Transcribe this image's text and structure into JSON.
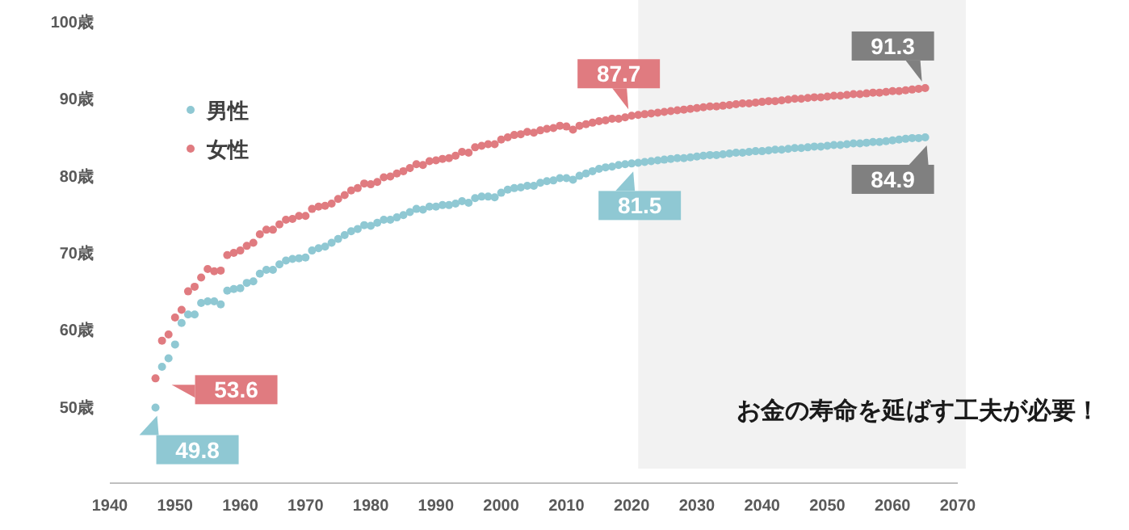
{
  "chart_data": {
    "type": "scatter",
    "marker": "circle",
    "legend": "top left",
    "grid": false,
    "x": [
      1947,
      1948,
      1949,
      1950,
      1951,
      1952,
      1953,
      1954,
      1955,
      1956,
      1957,
      1958,
      1959,
      1960,
      1961,
      1962,
      1963,
      1964,
      1965,
      1966,
      1967,
      1968,
      1969,
      1970,
      1971,
      1972,
      1973,
      1974,
      1975,
      1976,
      1977,
      1978,
      1979,
      1980,
      1981,
      1982,
      1983,
      1984,
      1985,
      1986,
      1987,
      1988,
      1989,
      1990,
      1991,
      1992,
      1993,
      1994,
      1995,
      1996,
      1997,
      1998,
      1999,
      2000,
      2001,
      2002,
      2003,
      2004,
      2005,
      2006,
      2007,
      2008,
      2009,
      2010,
      2011,
      2012,
      2013,
      2014,
      2015,
      2016,
      2017,
      2018,
      2019,
      2020,
      2021,
      2022,
      2023,
      2024,
      2025,
      2026,
      2027,
      2028,
      2029,
      2030,
      2031,
      2032,
      2033,
      2034,
      2035,
      2036,
      2037,
      2038,
      2039,
      2040,
      2041,
      2042,
      2043,
      2044,
      2045,
      2046,
      2047,
      2048,
      2049,
      2050,
      2051,
      2052,
      2053,
      2054,
      2055,
      2056,
      2057,
      2058,
      2059,
      2060,
      2061,
      2062,
      2063,
      2064,
      2065
    ],
    "series": [
      {
        "name": "男性",
        "color": "#8fc8d3",
        "values": [
          49.8,
          55.1,
          56.2,
          58.0,
          60.8,
          61.9,
          61.9,
          63.4,
          63.6,
          63.6,
          63.2,
          65.0,
          65.2,
          65.3,
          66.0,
          66.2,
          67.2,
          67.7,
          67.7,
          68.4,
          68.9,
          69.1,
          69.2,
          69.3,
          70.2,
          70.5,
          70.7,
          71.2,
          71.7,
          72.2,
          72.7,
          73.0,
          73.5,
          73.4,
          73.8,
          74.2,
          74.2,
          74.5,
          74.8,
          75.2,
          75.6,
          75.5,
          75.9,
          75.9,
          76.1,
          76.1,
          76.3,
          76.6,
          76.4,
          77.0,
          77.2,
          77.2,
          77.1,
          77.7,
          78.1,
          78.3,
          78.4,
          78.6,
          78.6,
          79.0,
          79.2,
          79.3,
          79.6,
          79.6,
          79.4,
          79.9,
          80.2,
          80.5,
          80.8,
          81.0,
          81.1,
          81.3,
          81.4,
          81.5,
          81.6,
          81.7,
          81.8,
          81.9,
          82.0,
          82.1,
          82.2,
          82.2,
          82.3,
          82.4,
          82.5,
          82.6,
          82.6,
          82.7,
          82.8,
          82.9,
          82.9,
          83.0,
          83.1,
          83.1,
          83.2,
          83.3,
          83.3,
          83.4,
          83.5,
          83.5,
          83.6,
          83.7,
          83.7,
          83.8,
          83.9,
          83.9,
          84.0,
          84.1,
          84.1,
          84.2,
          84.3,
          84.3,
          84.4,
          84.5,
          84.6,
          84.7,
          84.8,
          84.8,
          84.9
        ]
      },
      {
        "name": "女性",
        "color": "#e07b80",
        "values": [
          53.6,
          58.5,
          59.3,
          61.5,
          62.5,
          64.9,
          65.5,
          66.7,
          67.8,
          67.5,
          67.6,
          69.6,
          69.9,
          70.2,
          70.8,
          71.2,
          72.3,
          72.9,
          72.9,
          73.6,
          74.2,
          74.3,
          74.7,
          74.7,
          75.6,
          75.9,
          76.0,
          76.3,
          76.9,
          77.4,
          78.0,
          78.3,
          78.9,
          78.8,
          79.1,
          79.7,
          79.8,
          80.2,
          80.5,
          80.9,
          81.4,
          81.3,
          81.8,
          81.9,
          82.1,
          82.2,
          82.5,
          83.0,
          82.9,
          83.6,
          83.8,
          84.0,
          84.0,
          84.6,
          84.9,
          85.2,
          85.3,
          85.6,
          85.5,
          85.8,
          86.0,
          86.1,
          86.4,
          86.3,
          85.9,
          86.4,
          86.6,
          86.8,
          87.0,
          87.1,
          87.3,
          87.3,
          87.5,
          87.7,
          87.8,
          87.9,
          88.0,
          88.1,
          88.2,
          88.3,
          88.4,
          88.5,
          88.6,
          88.7,
          88.8,
          88.9,
          88.9,
          89.0,
          89.1,
          89.2,
          89.3,
          89.3,
          89.4,
          89.5,
          89.6,
          89.6,
          89.7,
          89.8,
          89.9,
          89.9,
          90.0,
          90.1,
          90.1,
          90.2,
          90.3,
          90.3,
          90.4,
          90.5,
          90.5,
          90.6,
          90.7,
          90.7,
          90.8,
          90.9,
          90.9,
          91.0,
          91.1,
          91.2,
          91.3
        ]
      }
    ],
    "xlim": [
      1940,
      2070
    ],
    "xticks": [
      1940,
      1950,
      1960,
      1970,
      1980,
      1990,
      2000,
      2010,
      2020,
      2030,
      2040,
      2050,
      2060,
      2070
    ],
    "ylim": [
      40,
      100
    ],
    "yticks": [
      {
        "value": 50,
        "label": "50歳"
      },
      {
        "value": 60,
        "label": "60歳"
      },
      {
        "value": 70,
        "label": "70歳"
      },
      {
        "value": 80,
        "label": "80歳"
      },
      {
        "value": 90,
        "label": "90歳"
      },
      {
        "value": 100,
        "label": "100歳"
      }
    ],
    "bands": [
      {
        "axis": "x",
        "from": 2021,
        "to": 2070,
        "color": "#f2f2f2"
      }
    ],
    "annotations": [
      {
        "text": "53.6",
        "x": 1947,
        "y": 53.6
      },
      {
        "text": "49.8",
        "x": 1947,
        "y": 49.8
      },
      {
        "text": "87.7",
        "x": 2020,
        "y": 87.7
      },
      {
        "text": "81.5",
        "x": 2020,
        "y": 81.5
      },
      {
        "text": "91.3",
        "x": 2065,
        "y": 91.3
      },
      {
        "text": "84.9",
        "x": 2065,
        "y": 84.9
      },
      "お金の寿命を延ばす工夫が必要！"
    ]
  }
}
